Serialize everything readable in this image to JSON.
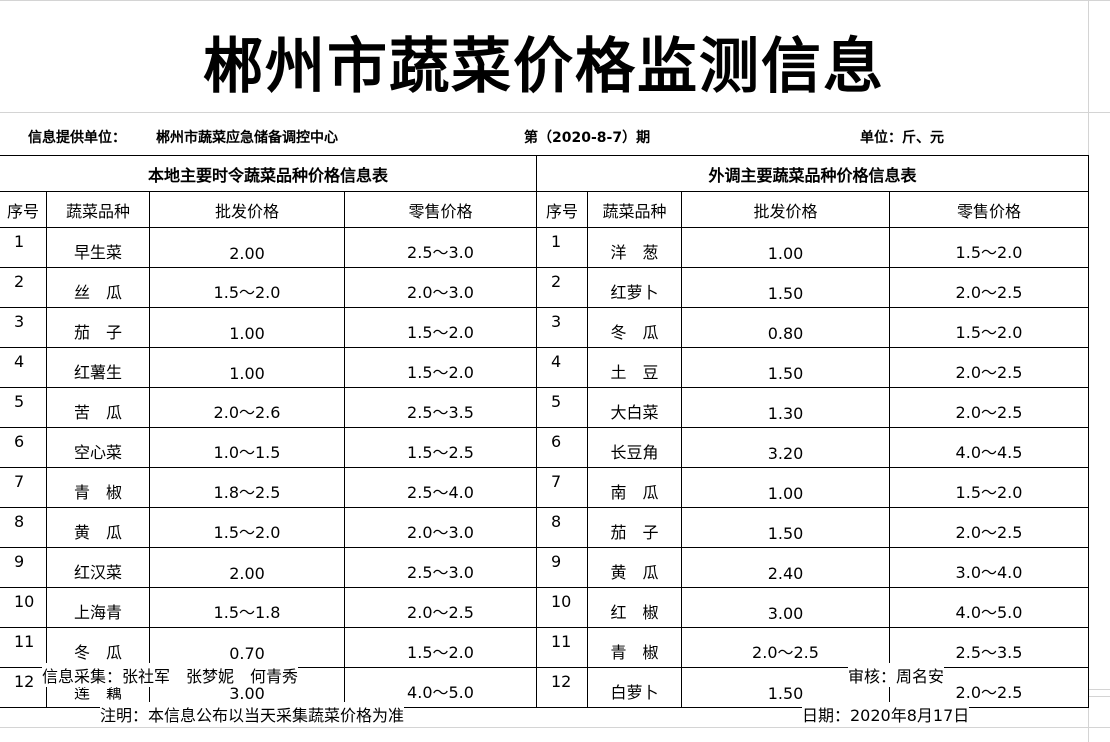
{
  "title": "郴州市蔬菜价格监测信息",
  "info": {
    "provider_label": "信息提供单位：",
    "provider": "郴州市蔬菜应急储备调控中心",
    "issue": "第（2020-8-7）期",
    "unit": "单位：斤、元"
  },
  "local": {
    "heading": "本地主要时令蔬菜品种价格信息表",
    "columns": [
      "序号",
      "蔬菜品种",
      "批发价格",
      "零售价格"
    ],
    "rows": [
      [
        "1",
        "早生菜",
        "2.00",
        "2.5～3.0"
      ],
      [
        "2",
        "丝　瓜",
        "1.5～2.0",
        "2.0～3.0"
      ],
      [
        "3",
        "茄　子",
        "1.00",
        "1.5～2.0"
      ],
      [
        "4",
        "红薯生",
        "1.00",
        "1.5～2.0"
      ],
      [
        "5",
        "苦　瓜",
        "2.0～2.6",
        "2.5～3.5"
      ],
      [
        "6",
        "空心菜",
        "1.0～1.5",
        "1.5～2.5"
      ],
      [
        "7",
        "青　椒",
        "1.8～2.5",
        "2.5～4.0"
      ],
      [
        "8",
        "黄　瓜",
        "1.5～2.0",
        "2.0～3.0"
      ],
      [
        "9",
        "红汉菜",
        "2.00",
        "2.5～3.0"
      ],
      [
        "10",
        "上海青",
        "1.5～1.8",
        "2.0～2.5"
      ],
      [
        "11",
        "冬　瓜",
        "0.70",
        "1.5～2.0"
      ],
      [
        "12",
        "莲　藕",
        "3.00",
        "4.0～5.0"
      ]
    ]
  },
  "imported": {
    "heading": "外调主要蔬菜品种价格信息表",
    "columns": [
      "序号",
      "蔬菜品种",
      "批发价格",
      "零售价格"
    ],
    "rows": [
      [
        "1",
        "洋　葱",
        "1.00",
        "1.5～2.0"
      ],
      [
        "2",
        "红萝卜",
        "1.50",
        "2.0～2.5"
      ],
      [
        "3",
        "冬　瓜",
        "0.80",
        "1.5～2.0"
      ],
      [
        "4",
        "土　豆",
        "1.50",
        "2.0～2.5"
      ],
      [
        "5",
        "大白菜",
        "1.30",
        "2.0～2.5"
      ],
      [
        "6",
        "长豆角",
        "3.20",
        "4.0～4.5"
      ],
      [
        "7",
        "南　瓜",
        "1.00",
        "1.5～2.0"
      ],
      [
        "8",
        "茄　子",
        "1.50",
        "2.0～2.5"
      ],
      [
        "9",
        "黄　瓜",
        "2.40",
        "3.0～4.0"
      ],
      [
        "10",
        "红　椒",
        "3.00",
        "4.0～5.0"
      ],
      [
        "11",
        "青　椒",
        "2.0～2.5",
        "2.5～3.5"
      ],
      [
        "12",
        "白萝卜",
        "1.50",
        "2.0～2.5"
      ]
    ]
  },
  "footer": {
    "collectors": "信息采集：张社军　张梦妮　何青秀",
    "reviewer": "审核：周名安",
    "note": "注明：本信息公布以当天采集蔬菜价格为准",
    "date": "日期：2020年8月17日"
  }
}
